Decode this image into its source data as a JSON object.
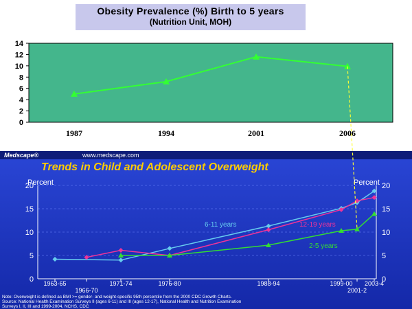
{
  "top": {
    "title": "Obesity Prevalence (%) Birth to 5 years",
    "subtitle": "(Nutrition Unit, MOH)",
    "colors": {
      "plot_bg": "#44b68c",
      "line": "#33ff33"
    }
  },
  "bottom": {
    "brand": "Medscape®",
    "url": "www.medscape.com",
    "title": "Trends in Child and Adolescent Overweight",
    "y_label_left": "Percent",
    "y_label_right": "Percent",
    "footnote_lines": [
      "Note: Overweight is defined as BMI >= gender- and weight-specific 95th percentile from the 2000 CDC Growth Charts.",
      "Source: National Health Examination Surveys II (ages 6-11) and III (ages 12-17), National Health and Nutrition Examination",
      "Surveys I, II, III and 1999-2004, NCHS, CDC"
    ],
    "colors": {
      "bg": "#1e34c0",
      "title": "#ffcc00",
      "s611": "#66ccee",
      "s1219": "#ee3399",
      "s25": "#33dd33"
    }
  },
  "chart_data": [
    {
      "type": "line",
      "title": "Obesity Prevalence (%) Birth to 5 years",
      "subtitle": "(Nutrition Unit, MOH)",
      "x": [
        "1987",
        "1994",
        "2001",
        "2006"
      ],
      "series": [
        {
          "name": "Obesity prevalence (%)",
          "values": [
            5.0,
            7.2,
            11.6,
            9.9
          ]
        }
      ],
      "ylim": [
        0,
        14
      ],
      "yticks": [
        "0",
        "2",
        "4",
        "6",
        "8",
        "10",
        "12",
        "14"
      ],
      "grid": false
    },
    {
      "type": "line",
      "title": "Trends in Child and Adolescent Overweight",
      "ylabel": "Percent",
      "xticks": [
        "1963-65",
        "1966-70",
        "1971-74",
        "1976-80",
        "1988-94",
        "1999-00",
        "2001-2",
        "2003-4"
      ],
      "ylim": [
        0,
        20
      ],
      "yticks": [
        "0",
        "5",
        "10",
        "15",
        "20"
      ],
      "series": [
        {
          "name": "6-11 years",
          "x": [
            "1963-65",
            "1971-74",
            "1976-80",
            "1988-94",
            "1999-00",
            "2001-2",
            "2003-4"
          ],
          "values": [
            4.2,
            4.0,
            6.5,
            11.3,
            15.1,
            16.3,
            18.8
          ]
        },
        {
          "name": "12-19 years",
          "x": [
            "1966-70",
            "1971-74",
            "1976-80",
            "1988-94",
            "1999-00",
            "2001-2",
            "2003-4"
          ],
          "values": [
            4.6,
            6.1,
            5.0,
            10.5,
            14.8,
            16.7,
            17.4
          ]
        },
        {
          "name": "2-5 years",
          "x": [
            "1971-74",
            "1976-80",
            "1988-94",
            "1999-00",
            "2001-2",
            "2003-4"
          ],
          "values": [
            5.0,
            5.0,
            7.2,
            10.3,
            10.6,
            13.9
          ]
        }
      ]
    }
  ]
}
